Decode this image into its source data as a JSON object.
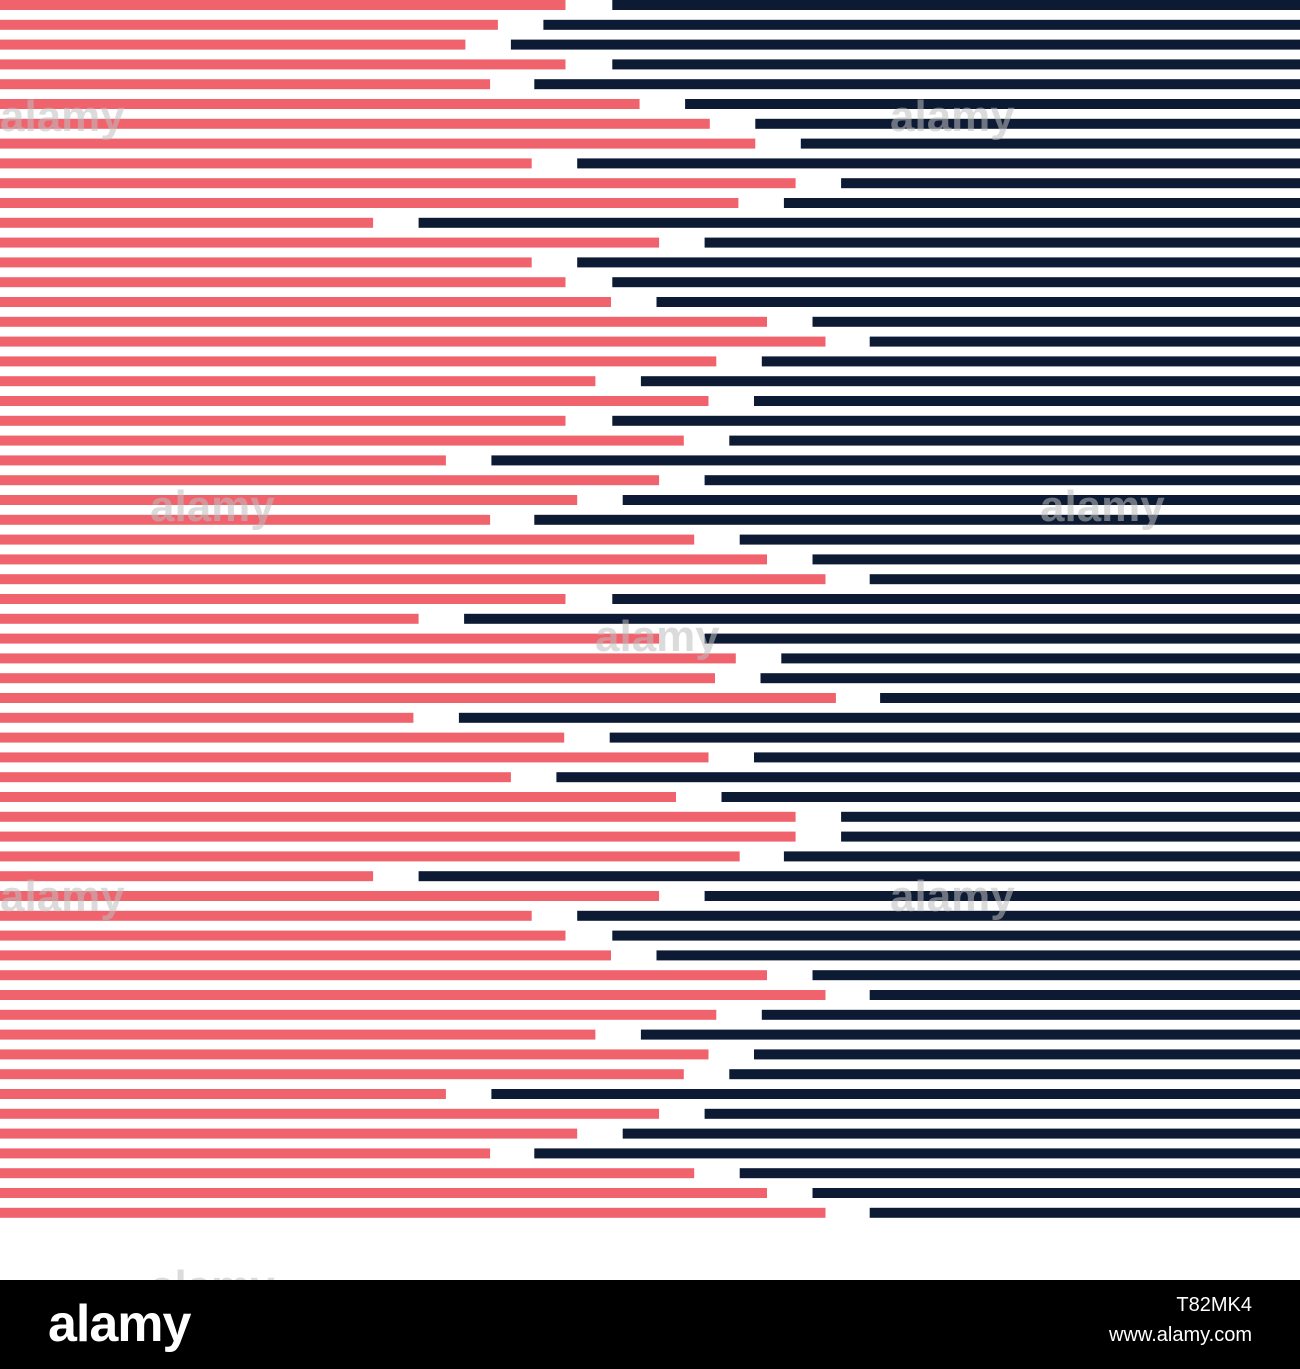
{
  "colors": {
    "left_stripe": "#f0636d",
    "right_stripe": "#0c1a33",
    "background": "#ffffff",
    "footer_bg": "#000000",
    "footer_text": "#ffffff"
  },
  "stripes": [
    [
      0.435,
      0.471
    ],
    [
      0.383,
      0.418
    ],
    [
      0.358,
      0.393
    ],
    [
      0.435,
      0.471
    ],
    [
      0.377,
      0.411
    ],
    [
      0.492,
      0.527
    ],
    [
      0.546,
      0.581
    ],
    [
      0.581,
      0.616
    ],
    [
      0.409,
      0.444
    ],
    [
      0.612,
      0.647
    ],
    [
      0.568,
      0.603
    ],
    [
      0.287,
      0.322
    ],
    [
      0.507,
      0.542
    ],
    [
      0.409,
      0.444
    ],
    [
      0.435,
      0.471
    ],
    [
      0.47,
      0.505
    ],
    [
      0.59,
      0.625
    ],
    [
      0.635,
      0.669
    ],
    [
      0.551,
      0.586
    ],
    [
      0.458,
      0.493
    ],
    [
      0.545,
      0.58
    ],
    [
      0.435,
      0.471
    ],
    [
      0.526,
      0.561
    ],
    [
      0.343,
      0.378
    ],
    [
      0.507,
      0.542
    ],
    [
      0.444,
      0.479
    ],
    [
      0.377,
      0.411
    ],
    [
      0.534,
      0.569
    ],
    [
      0.59,
      0.625
    ],
    [
      0.635,
      0.669
    ],
    [
      0.435,
      0.471
    ],
    [
      0.322,
      0.357
    ],
    [
      0.507,
      0.542
    ],
    [
      0.566,
      0.601
    ],
    [
      0.55,
      0.585
    ],
    [
      0.643,
      0.677
    ],
    [
      0.318,
      0.353
    ],
    [
      0.434,
      0.469
    ],
    [
      0.545,
      0.58
    ],
    [
      0.393,
      0.428
    ],
    [
      0.52,
      0.555
    ],
    [
      0.612,
      0.647
    ],
    [
      0.612,
      0.647
    ],
    [
      0.569,
      0.603
    ],
    [
      0.287,
      0.322
    ],
    [
      0.507,
      0.542
    ],
    [
      0.409,
      0.444
    ],
    [
      0.435,
      0.471
    ],
    [
      0.47,
      0.505
    ],
    [
      0.59,
      0.625
    ],
    [
      0.635,
      0.669
    ],
    [
      0.551,
      0.586
    ],
    [
      0.458,
      0.493
    ],
    [
      0.545,
      0.58
    ],
    [
      0.526,
      0.561
    ],
    [
      0.343,
      0.378
    ],
    [
      0.507,
      0.542
    ],
    [
      0.444,
      0.479
    ],
    [
      0.377,
      0.411
    ],
    [
      0.534,
      0.569
    ],
    [
      0.59,
      0.625
    ],
    [
      0.635,
      0.669
    ]
  ],
  "footer": {
    "logo_text": "alamy",
    "image_id": "T82MK4",
    "site_url": "www.alamy.com"
  },
  "watermarks": [
    "alamy",
    "alamy",
    "alamy",
    "alamy",
    "alamy",
    "alamy",
    "alamy",
    "alamy"
  ]
}
